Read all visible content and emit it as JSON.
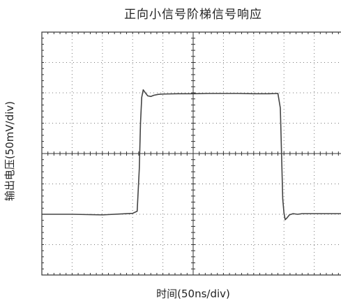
{
  "chart_data": {
    "type": "line",
    "title": "正向小信号阶梯信号响应",
    "xlabel": "时间(50ns/div)",
    "ylabel": "输出电压(50mV/div)",
    "x_divisions": 10,
    "y_divisions": 8,
    "grid": true,
    "grid_style": "dotted with center crosshair ticks",
    "xlim": [
      0,
      10
    ],
    "ylim": [
      -4,
      4
    ],
    "series": [
      {
        "color": "#444444",
        "x": [
          0,
          1.0,
          2.0,
          3.0,
          3.15,
          3.22,
          3.26,
          3.3,
          3.35,
          3.42,
          3.5,
          3.6,
          3.7,
          3.85,
          4.0,
          4.5,
          5.0,
          5.5,
          6.0,
          6.5,
          7.0,
          7.5,
          7.8,
          7.88,
          7.92,
          7.96,
          8.0,
          8.04,
          8.1,
          8.18,
          8.3,
          8.45,
          8.6,
          9.0,
          9.5,
          10.0
        ],
        "y": [
          -2.0,
          -2.0,
          -2.02,
          -1.97,
          -1.9,
          -0.5,
          1.0,
          1.85,
          2.1,
          2.0,
          1.9,
          1.88,
          1.92,
          1.95,
          1.96,
          1.97,
          1.97,
          1.98,
          1.98,
          1.98,
          1.97,
          1.97,
          1.98,
          1.5,
          0.0,
          -1.5,
          -1.95,
          -2.18,
          -2.12,
          -2.02,
          -1.98,
          -2.0,
          -1.98,
          -1.98,
          -1.98,
          -1.98
        ]
      }
    ]
  }
}
